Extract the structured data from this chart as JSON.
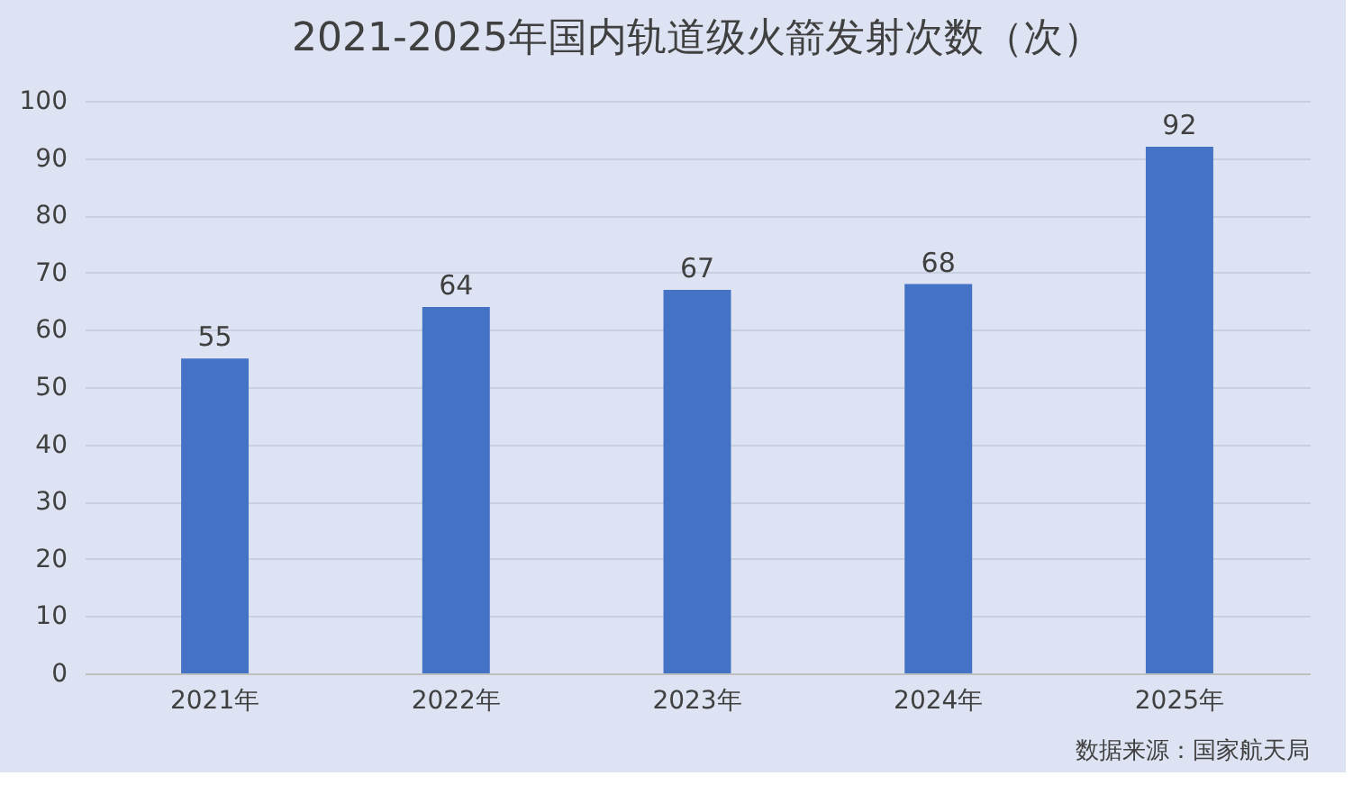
{
  "chart_data": {
    "type": "bar",
    "title": "2021-2025年国内轨道级火箭发射次数（次）",
    "categories": [
      "2021年",
      "2022年",
      "2023年",
      "2024年",
      "2025年"
    ],
    "values": [
      55,
      64,
      67,
      68,
      92
    ],
    "color": "#4472c4",
    "ylim": [
      0,
      100
    ],
    "yticks": [
      0,
      10,
      20,
      30,
      40,
      50,
      60,
      70,
      80,
      90,
      100
    ],
    "grid": "y",
    "data_labels": true,
    "annotations": [
      "数据来源：国家航天局"
    ]
  }
}
